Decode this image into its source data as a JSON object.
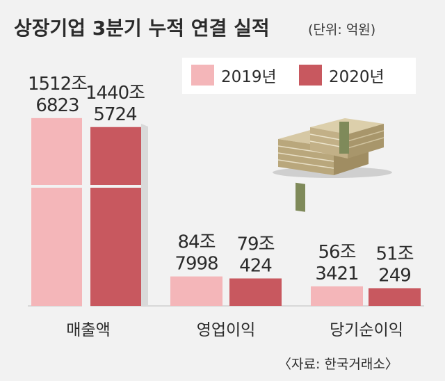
{
  "title": "상장기업 3분기 누적 연결 실적",
  "unit": "(단위: 억원)",
  "source": "〈자료: 한국거래소〉",
  "colors": {
    "y2019": "#f4b6b9",
    "y2020": "#c8585f",
    "background": "#f2f2f2"
  },
  "icon": "money-stack-icon",
  "chart_data": {
    "type": "bar",
    "categories": [
      "매출액",
      "영업이익",
      "당기순이익"
    ],
    "series": [
      {
        "name": "2019년",
        "values": [
          15126823,
          847998,
          563421
        ],
        "labels": [
          [
            "1512조",
            "6823"
          ],
          [
            "84조",
            "7998"
          ],
          [
            "56조",
            "3421"
          ]
        ]
      },
      {
        "name": "2020년",
        "values": [
          14405724,
          790424,
          510249
        ],
        "labels": [
          [
            "1440조",
            "5724"
          ],
          [
            "79조",
            "424"
          ],
          [
            "51조",
            "249"
          ]
        ]
      }
    ],
    "legend": "top-right",
    "grid": false,
    "scale": "broken"
  }
}
